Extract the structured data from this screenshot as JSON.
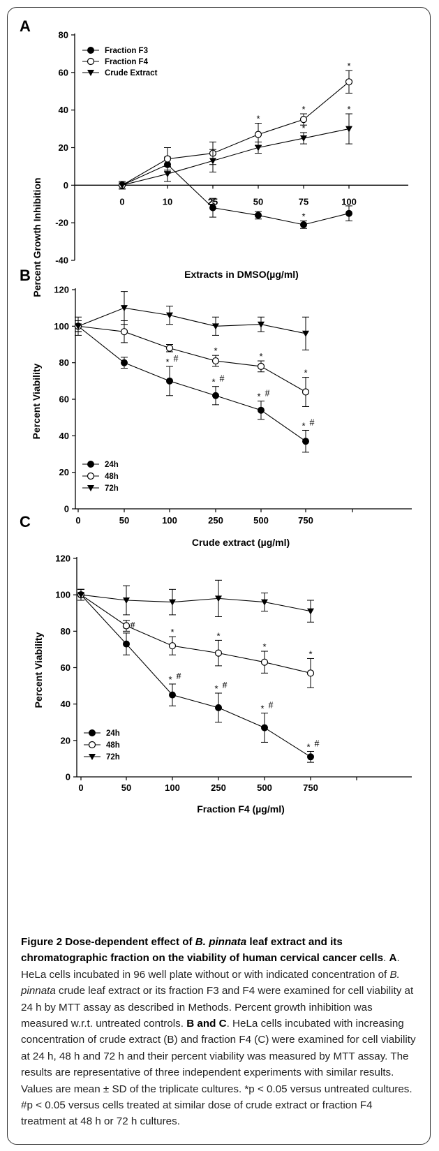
{
  "panel_letters": [
    "A",
    "B",
    "C"
  ],
  "caption": {
    "figure_title_parts": [
      {
        "t": "Figure 2 Dose-dependent effect of ",
        "b": true,
        "i": false
      },
      {
        "t": "B. pinnata",
        "b": true,
        "i": true
      },
      {
        "t": " leaf extract and its chromatographic fraction on the viability of human cervical cancer cells",
        "b": true,
        "i": false
      },
      {
        "t": ". ",
        "b": false,
        "i": false
      }
    ],
    "body_parts": [
      {
        "t": "A",
        "b": true,
        "i": false
      },
      {
        "t": ". HeLa cells incubated in 96 well plate without or with indicated concentration of ",
        "b": false,
        "i": false
      },
      {
        "t": "B. pinnata",
        "b": false,
        "i": true
      },
      {
        "t": " crude leaf extract or its fraction F3 and F4 were examined for cell viability at 24 h by MTT assay as described in Methods. Percent growth inhibition was measured w.r.t. untreated controls. ",
        "b": false,
        "i": false
      },
      {
        "t": "B and C",
        "b": true,
        "i": false
      },
      {
        "t": ". HeLa cells incubated with increasing concentration of crude extract (B) and fraction F4 (C) were examined for cell viability at 24 h, 48 h and 72 h and their percent viability was measured by MTT assay. The results are representative of three independent experiments with similar results. Values are mean ± SD of the triplicate cultures. *p < 0.05 versus untreated cultures. #p < 0.05 versus cells treated at similar dose of crude extract or fraction F4 treatment at 48 h or 72 h cultures.",
        "b": false,
        "i": false
      }
    ]
  },
  "chart_data": [
    {
      "panel": "A",
      "type": "line",
      "categories": [
        "0",
        "10",
        "25",
        "50",
        "75",
        "100"
      ],
      "xlabel": "Extracts in DMSO(µg/ml)",
      "ylabel": "Percent Growth Inhibition",
      "ylim": [
        -40,
        80
      ],
      "yticks": [
        -40,
        -20,
        0,
        20,
        40,
        60,
        80
      ],
      "legend_position": "top-left",
      "grid": false,
      "series": [
        {
          "name": "Fraction F3",
          "marker": "filled-circle",
          "values": [
            0,
            11,
            -12,
            -16,
            -21,
            -15
          ],
          "err": [
            2,
            4,
            5,
            2,
            2,
            4
          ],
          "stars": [
            false,
            false,
            false,
            false,
            true,
            false
          ],
          "hashes": [
            false,
            false,
            false,
            false,
            false,
            false
          ]
        },
        {
          "name": "Fraction F4",
          "marker": "open-circle",
          "values": [
            0,
            14,
            17,
            27,
            35,
            55
          ],
          "err": [
            2,
            6,
            6,
            6,
            3,
            6
          ],
          "stars": [
            false,
            false,
            false,
            true,
            true,
            true
          ],
          "hashes": [
            false,
            false,
            false,
            false,
            false,
            false
          ]
        },
        {
          "name": "Crude Extract",
          "marker": "filled-triangle-down",
          "values": [
            0,
            6,
            13,
            20,
            25,
            30
          ],
          "err": [
            2,
            4,
            6,
            3,
            3,
            8
          ],
          "stars": [
            false,
            false,
            false,
            false,
            true,
            true
          ],
          "hashes": [
            false,
            false,
            false,
            false,
            false,
            false
          ]
        }
      ]
    },
    {
      "panel": "B",
      "type": "line",
      "categories": [
        "0",
        "50",
        "100",
        "250",
        "500",
        "750"
      ],
      "xlabel": "Crude extract (µg/ml)",
      "ylabel": "Percent Viability",
      "ylim": [
        0,
        120
      ],
      "yticks": [
        0,
        20,
        40,
        60,
        80,
        100,
        120
      ],
      "legend_position": "bottom-left",
      "grid": false,
      "series": [
        {
          "name": "24h",
          "marker": "filled-circle",
          "values": [
            100,
            80,
            70,
            62,
            54,
            37
          ],
          "err": [
            3,
            3,
            8,
            5,
            5,
            6
          ],
          "stars": [
            false,
            false,
            true,
            true,
            true,
            true
          ],
          "hashes": [
            false,
            false,
            true,
            true,
            true,
            true
          ]
        },
        {
          "name": "48h",
          "marker": "open-circle",
          "values": [
            100,
            97,
            88,
            81,
            78,
            64
          ],
          "err": [
            3,
            6,
            2,
            3,
            3,
            8
          ],
          "stars": [
            false,
            false,
            false,
            true,
            true,
            true
          ],
          "hashes": [
            false,
            false,
            false,
            false,
            false,
            false
          ]
        },
        {
          "name": "72h",
          "marker": "filled-triangle-down",
          "values": [
            100,
            110,
            106,
            100,
            101,
            96
          ],
          "err": [
            5,
            9,
            5,
            5,
            4,
            9
          ],
          "stars": [
            false,
            false,
            false,
            false,
            false,
            false
          ],
          "hashes": [
            false,
            false,
            false,
            false,
            false,
            false
          ]
        }
      ]
    },
    {
      "panel": "C",
      "type": "line",
      "categories": [
        "0",
        "50",
        "100",
        "250",
        "500",
        "750"
      ],
      "xlabel": "Fraction F4 (µg/ml)",
      "ylabel": "Percent Viability",
      "ylim": [
        0,
        120
      ],
      "yticks": [
        0,
        20,
        40,
        60,
        80,
        100,
        120
      ],
      "legend_position": "bottom-left",
      "grid": false,
      "series": [
        {
          "name": "24h",
          "marker": "filled-circle",
          "values": [
            100,
            73,
            45,
            38,
            27,
            11
          ],
          "err": [
            3,
            6,
            6,
            8,
            8,
            3
          ],
          "stars": [
            false,
            true,
            true,
            true,
            true,
            true
          ],
          "hashes": [
            false,
            true,
            true,
            true,
            true,
            true
          ]
        },
        {
          "name": "48h",
          "marker": "open-circle",
          "values": [
            100,
            83,
            72,
            68,
            63,
            57
          ],
          "err": [
            3,
            3,
            5,
            7,
            6,
            8
          ],
          "stars": [
            false,
            false,
            true,
            true,
            true,
            true
          ],
          "hashes": [
            false,
            false,
            false,
            false,
            false,
            false
          ]
        },
        {
          "name": "72h",
          "marker": "filled-triangle-down",
          "values": [
            100,
            97,
            96,
            98,
            96,
            91
          ],
          "err": [
            3,
            8,
            7,
            10,
            5,
            6
          ],
          "stars": [
            false,
            false,
            false,
            false,
            false,
            false
          ],
          "hashes": [
            false,
            false,
            false,
            false,
            false,
            false
          ]
        }
      ]
    }
  ]
}
